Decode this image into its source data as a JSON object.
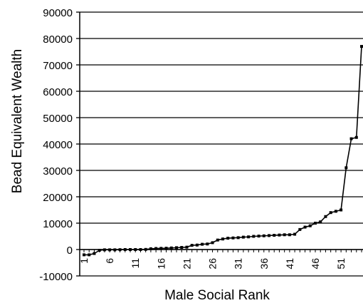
{
  "chart_data": {
    "type": "line",
    "title": "",
    "xlabel": "Male Social Rank",
    "ylabel": "Bead Equivalent Wealth",
    "ylim": [
      -10000,
      90000
    ],
    "yticks": [
      -10000,
      0,
      10000,
      20000,
      30000,
      40000,
      50000,
      60000,
      70000,
      80000,
      90000
    ],
    "ytick_labels": [
      "-10000",
      "0",
      "10000",
      "20000",
      "30000",
      "40000",
      "50000",
      "60000",
      "70000",
      "80000",
      "90000"
    ],
    "xlim": [
      1,
      55
    ],
    "xticks": [
      1,
      6,
      11,
      16,
      21,
      26,
      31,
      36,
      41,
      46,
      51
    ],
    "xtick_labels": [
      "1",
      "6",
      "11",
      "16",
      "21",
      "26",
      "31",
      "36",
      "41",
      "46",
      "51"
    ],
    "grid": true,
    "series": [
      {
        "x": [
          1,
          2,
          3,
          4,
          5,
          6,
          7,
          8,
          9,
          10,
          11,
          12,
          13,
          14,
          15,
          16,
          17,
          18,
          19,
          20,
          21,
          22,
          23,
          24,
          25,
          26,
          27,
          28,
          29,
          30,
          31,
          32,
          33,
          34,
          35,
          36,
          37,
          38,
          39,
          40,
          41,
          42,
          43,
          44,
          45,
          46,
          47,
          48,
          49,
          50,
          51,
          52,
          53,
          54,
          55
        ],
        "values": [
          -2000,
          -2000,
          -1500,
          -300,
          -100,
          -100,
          -100,
          -50,
          0,
          0,
          0,
          0,
          50,
          300,
          400,
          450,
          500,
          600,
          700,
          800,
          900,
          1600,
          1700,
          2000,
          2100,
          2600,
          3600,
          4000,
          4300,
          4400,
          4500,
          4700,
          4800,
          5000,
          5100,
          5200,
          5300,
          5400,
          5500,
          5600,
          5600,
          5800,
          7600,
          8500,
          9000,
          10000,
          10500,
          12500,
          14000,
          14500,
          15000,
          31000,
          42000,
          42500,
          77000
        ]
      }
    ]
  }
}
